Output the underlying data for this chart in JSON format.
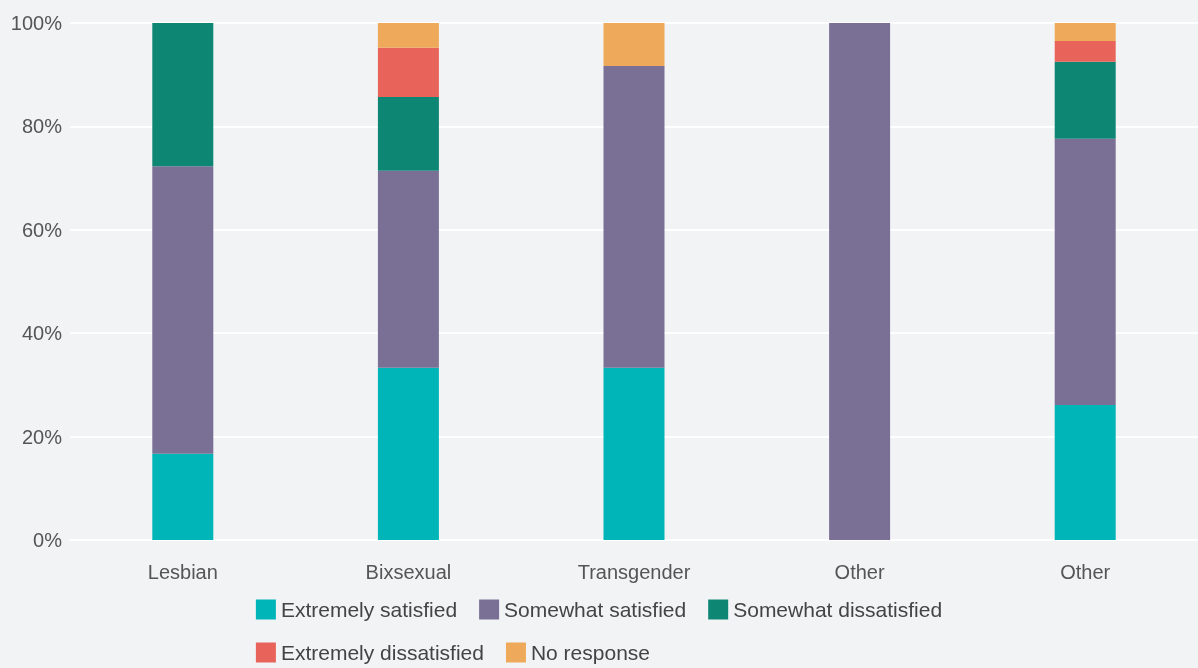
{
  "chart_data": {
    "type": "bar",
    "stacked": true,
    "categories": [
      "Lesbian",
      "Bixsexual",
      "Transgender",
      "Other",
      "Other"
    ],
    "series": [
      {
        "name": "Extremely satisfied",
        "color": "#00b5b8",
        "values": [
          16.7,
          33.3,
          33.3,
          0,
          26.1
        ]
      },
      {
        "name": "Somewhat satisfied",
        "color": "#7a7096",
        "values": [
          55.6,
          38.1,
          58.4,
          100,
          51.5
        ]
      },
      {
        "name": "Somewhat dissatisfied",
        "color": "#0e8674",
        "values": [
          27.7,
          14.3,
          0,
          0,
          14.9
        ]
      },
      {
        "name": "Extremely dissatisfied",
        "color": "#e8635a",
        "values": [
          0,
          9.5,
          0,
          0,
          4.0
        ]
      },
      {
        "name": "No response",
        "color": "#eeaa5a",
        "values": [
          0,
          4.8,
          8.3,
          0,
          3.5
        ]
      }
    ],
    "ylim": [
      0,
      100
    ],
    "yticks": [
      {
        "value": 0,
        "label": "0%"
      },
      {
        "value": 20,
        "label": "20%"
      },
      {
        "value": 40,
        "label": "40%"
      },
      {
        "value": 60,
        "label": "60%"
      },
      {
        "value": 80,
        "label": "80%"
      },
      {
        "value": 100,
        "label": "100%"
      }
    ],
    "grid": "y",
    "legend": "bottom"
  }
}
